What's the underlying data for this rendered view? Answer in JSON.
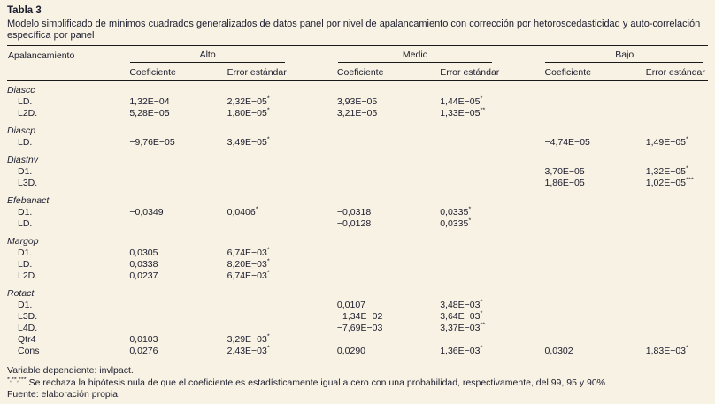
{
  "title": "Tabla 3",
  "subtitle": "Modelo simplificado de mínimos cuadrados generalizados de datos panel por nivel de apalancamiento con corrección por hetoroscedasticidad y auto-correlación específica por panel",
  "table": {
    "row_header": "Apalancamiento",
    "groups": [
      "Alto",
      "Medio",
      "Bajo"
    ],
    "sub_headers": [
      "Coeficiente",
      "Error estándar"
    ],
    "rows": [
      {
        "label": "Diascc",
        "group": true,
        "cells": [
          [
            "",
            ""
          ],
          [
            "",
            ""
          ],
          [
            "",
            ""
          ],
          [
            "",
            ""
          ],
          [
            "",
            ""
          ],
          [
            "",
            ""
          ]
        ]
      },
      {
        "label": "LD.",
        "group": false,
        "cells": [
          [
            "1,32E−04",
            ""
          ],
          [
            "2,32E−05",
            "*"
          ],
          [
            "3,93E−05",
            ""
          ],
          [
            "1,44E−05",
            "*"
          ],
          [
            "",
            ""
          ],
          [
            "",
            ""
          ]
        ]
      },
      {
        "label": "L2D.",
        "group": false,
        "cells": [
          [
            "5,28E−05",
            ""
          ],
          [
            "1,80E−05",
            "*"
          ],
          [
            "3,21E−05",
            ""
          ],
          [
            "1,33E−05",
            "**"
          ],
          [
            "",
            ""
          ],
          [
            "",
            ""
          ]
        ]
      },
      {
        "label": "Diascp",
        "group": true,
        "cells": [
          [
            "",
            ""
          ],
          [
            "",
            ""
          ],
          [
            "",
            ""
          ],
          [
            "",
            ""
          ],
          [
            "",
            ""
          ],
          [
            "",
            ""
          ]
        ]
      },
      {
        "label": "LD.",
        "group": false,
        "cells": [
          [
            "−9,76E−05",
            ""
          ],
          [
            "3,49E−05",
            "*"
          ],
          [
            "",
            ""
          ],
          [
            "",
            ""
          ],
          [
            "−4,74E−05",
            ""
          ],
          [
            "1,49E−05",
            "*"
          ]
        ]
      },
      {
        "label": "Diastnv",
        "group": true,
        "cells": [
          [
            "",
            ""
          ],
          [
            "",
            ""
          ],
          [
            "",
            ""
          ],
          [
            "",
            ""
          ],
          [
            "",
            ""
          ],
          [
            "",
            ""
          ]
        ]
      },
      {
        "label": "D1.",
        "group": false,
        "cells": [
          [
            "",
            ""
          ],
          [
            "",
            ""
          ],
          [
            "",
            ""
          ],
          [
            "",
            ""
          ],
          [
            "3,70E−05",
            ""
          ],
          [
            "1,32E−05",
            "*"
          ]
        ]
      },
      {
        "label": "L3D.",
        "group": false,
        "cells": [
          [
            "",
            ""
          ],
          [
            "",
            ""
          ],
          [
            "",
            ""
          ],
          [
            "",
            ""
          ],
          [
            "1,86E−05",
            ""
          ],
          [
            "1,02E−05",
            "***"
          ]
        ]
      },
      {
        "label": "Efebanact",
        "group": true,
        "cells": [
          [
            "",
            ""
          ],
          [
            "",
            ""
          ],
          [
            "",
            ""
          ],
          [
            "",
            ""
          ],
          [
            "",
            ""
          ],
          [
            "",
            ""
          ]
        ]
      },
      {
        "label": "D1.",
        "group": false,
        "cells": [
          [
            "−0,0349",
            ""
          ],
          [
            "0,0406",
            "*"
          ],
          [
            "−0,0318",
            ""
          ],
          [
            "0,0335",
            "*"
          ],
          [
            "",
            ""
          ],
          [
            "",
            ""
          ]
        ]
      },
      {
        "label": "LD.",
        "group": false,
        "cells": [
          [
            "",
            ""
          ],
          [
            "",
            ""
          ],
          [
            "−0,0128",
            ""
          ],
          [
            "0,0335",
            "*"
          ],
          [
            "",
            ""
          ],
          [
            "",
            ""
          ]
        ]
      },
      {
        "label": "Margop",
        "group": true,
        "cells": [
          [
            "",
            ""
          ],
          [
            "",
            ""
          ],
          [
            "",
            ""
          ],
          [
            "",
            ""
          ],
          [
            "",
            ""
          ],
          [
            "",
            ""
          ]
        ]
      },
      {
        "label": "D1.",
        "group": false,
        "cells": [
          [
            "0,0305",
            ""
          ],
          [
            "6,74E−03",
            "*"
          ],
          [
            "",
            ""
          ],
          [
            "",
            ""
          ],
          [
            "",
            ""
          ],
          [
            "",
            ""
          ]
        ]
      },
      {
        "label": "LD.",
        "group": false,
        "cells": [
          [
            "0,0338",
            ""
          ],
          [
            "8,20E−03",
            "*"
          ],
          [
            "",
            ""
          ],
          [
            "",
            ""
          ],
          [
            "",
            ""
          ],
          [
            "",
            ""
          ]
        ]
      },
      {
        "label": "L2D.",
        "group": false,
        "cells": [
          [
            "0,0237",
            ""
          ],
          [
            "6,74E−03",
            "*"
          ],
          [
            "",
            ""
          ],
          [
            "",
            ""
          ],
          [
            "",
            ""
          ],
          [
            "",
            ""
          ]
        ]
      },
      {
        "label": "Rotact",
        "group": true,
        "cells": [
          [
            "",
            ""
          ],
          [
            "",
            ""
          ],
          [
            "",
            ""
          ],
          [
            "",
            ""
          ],
          [
            "",
            ""
          ],
          [
            "",
            ""
          ]
        ]
      },
      {
        "label": "D1.",
        "group": false,
        "cells": [
          [
            "",
            ""
          ],
          [
            "",
            ""
          ],
          [
            "0,0107",
            ""
          ],
          [
            "3,48E−03",
            "*"
          ],
          [
            "",
            ""
          ],
          [
            "",
            ""
          ]
        ]
      },
      {
        "label": "L3D.",
        "group": false,
        "cells": [
          [
            "",
            ""
          ],
          [
            "",
            ""
          ],
          [
            "−1,34E−02",
            ""
          ],
          [
            "3,64E−03",
            "*"
          ],
          [
            "",
            ""
          ],
          [
            "",
            ""
          ]
        ]
      },
      {
        "label": "L4D.",
        "group": false,
        "cells": [
          [
            "",
            ""
          ],
          [
            "",
            ""
          ],
          [
            "−7,69E−03",
            ""
          ],
          [
            "3,37E−03",
            "**"
          ],
          [
            "",
            ""
          ],
          [
            "",
            ""
          ]
        ]
      },
      {
        "label": "Qtr4",
        "group": false,
        "cells": [
          [
            "0,0103",
            ""
          ],
          [
            "3,29E−03",
            "*"
          ],
          [
            "",
            ""
          ],
          [
            "",
            ""
          ],
          [
            "",
            ""
          ],
          [
            "",
            ""
          ]
        ]
      },
      {
        "label": "Cons",
        "group": false,
        "cells": [
          [
            "0,0276",
            ""
          ],
          [
            "2,43E−03",
            "*"
          ],
          [
            "0,0290",
            ""
          ],
          [
            "1,36E−03",
            "*"
          ],
          [
            "0,0302",
            ""
          ],
          [
            "1,83E−03",
            "*"
          ]
        ]
      }
    ]
  },
  "footer": {
    "dependent_var": "Variable dependiente: invlpact.",
    "note_marker": "*,**,***",
    "note_text": " Se rechaza la hipótesis nula de que el coeficiente es estadísticamente igual a cero con una probabilidad, respectivamente, del 99, 95 y 90%.",
    "source": "Fuente: elaboración propia."
  }
}
